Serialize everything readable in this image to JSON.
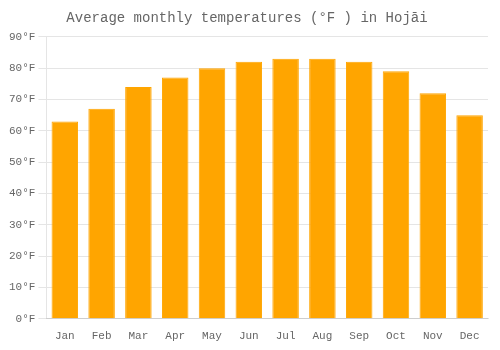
{
  "chart_data": {
    "type": "bar",
    "title": "Average monthly temperatures (°F ) in Hojāi",
    "categories": [
      "Jan",
      "Feb",
      "Mar",
      "Apr",
      "May",
      "Jun",
      "Jul",
      "Aug",
      "Sep",
      "Oct",
      "Nov",
      "Dec"
    ],
    "values": [
      63,
      67,
      74,
      77,
      80,
      82,
      83,
      83,
      82,
      79,
      72,
      65
    ],
    "color": "#FFA500",
    "ylim": [
      0,
      90
    ],
    "yticks": [
      {
        "value": 0,
        "label": "0°F"
      },
      {
        "value": 10,
        "label": "10°F"
      },
      {
        "value": 20,
        "label": "20°F"
      },
      {
        "value": 30,
        "label": "30°F"
      },
      {
        "value": 40,
        "label": "40°F"
      },
      {
        "value": 50,
        "label": "50°F"
      },
      {
        "value": 60,
        "label": "60°F"
      },
      {
        "value": 70,
        "label": "70°F"
      },
      {
        "value": 80,
        "label": "80°F"
      },
      {
        "value": 90,
        "label": "90°F"
      }
    ],
    "grid": true
  }
}
